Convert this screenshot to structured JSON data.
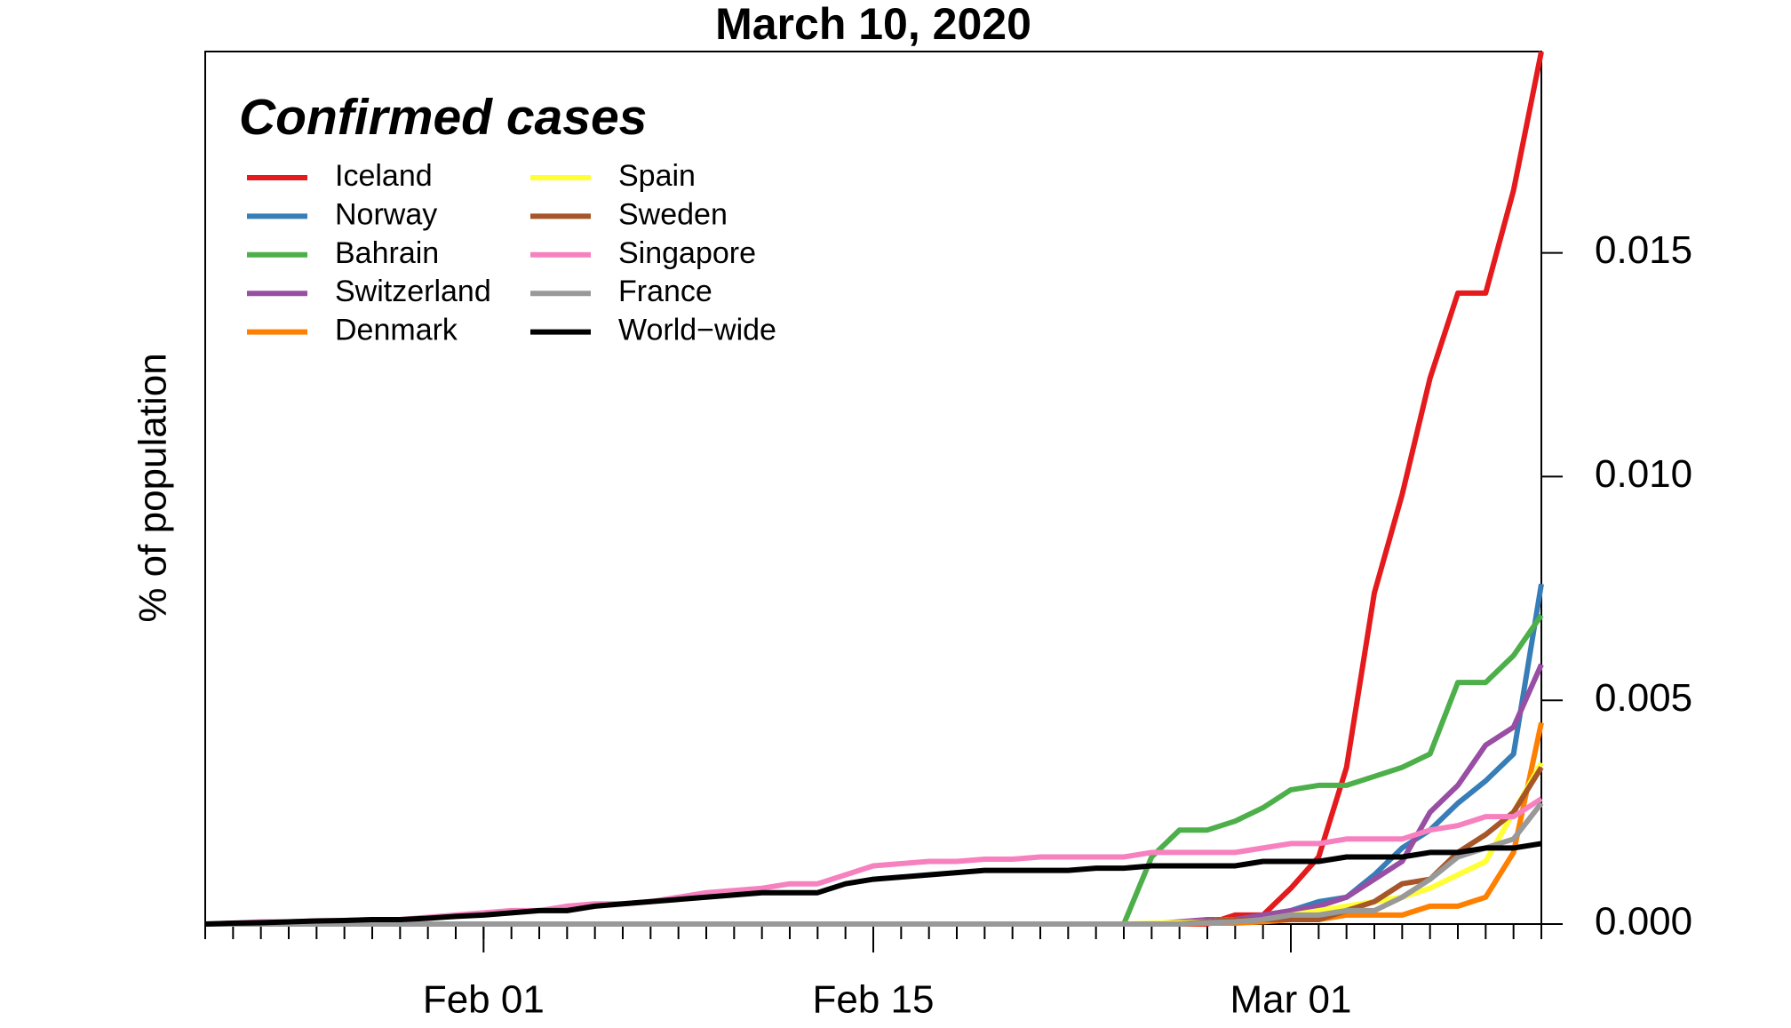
{
  "chart_data": {
    "type": "line",
    "title": "March 10, 2020",
    "y_label": "% of population",
    "y_axis_side": "right",
    "legend_title": "Confirmed cases",
    "legend_position": "top-left",
    "x": [
      "Jan 22",
      "Jan 23",
      "Jan 24",
      "Jan 25",
      "Jan 26",
      "Jan 27",
      "Jan 28",
      "Jan 29",
      "Jan 30",
      "Jan 31",
      "Feb 01",
      "Feb 02",
      "Feb 03",
      "Feb 04",
      "Feb 05",
      "Feb 06",
      "Feb 07",
      "Feb 08",
      "Feb 09",
      "Feb 10",
      "Feb 11",
      "Feb 12",
      "Feb 13",
      "Feb 14",
      "Feb 15",
      "Feb 16",
      "Feb 17",
      "Feb 18",
      "Feb 19",
      "Feb 20",
      "Feb 21",
      "Feb 22",
      "Feb 23",
      "Feb 24",
      "Feb 25",
      "Feb 26",
      "Feb 27",
      "Feb 28",
      "Feb 29",
      "Mar 01",
      "Mar 02",
      "Mar 03",
      "Mar 04",
      "Mar 05",
      "Mar 06",
      "Mar 07",
      "Mar 08",
      "Mar 09",
      "Mar 10"
    ],
    "xticks": [
      "Feb 01",
      "Feb 15",
      "Mar 01"
    ],
    "ylim": [
      0,
      0.0195
    ],
    "yticks": [
      {
        "value": 0,
        "label": "0.000"
      },
      {
        "value": 0.005,
        "label": "0.005"
      },
      {
        "value": 0.01,
        "label": "0.010"
      },
      {
        "value": 0.015,
        "label": "0.015"
      }
    ],
    "series": [
      {
        "name": "Iceland",
        "color": "#e41a1c",
        "values": [
          0,
          0,
          0,
          0,
          0,
          0,
          0,
          0,
          0,
          0,
          0,
          0,
          0,
          0,
          0,
          0,
          0,
          0,
          0,
          0,
          0,
          0,
          0,
          0,
          0,
          0,
          0,
          0,
          0,
          0,
          0,
          0,
          0,
          0,
          0,
          0,
          0,
          0.0002,
          0.0002,
          0.0008,
          0.0015,
          0.0035,
          0.0074,
          0.0096,
          0.0122,
          0.0141,
          0.0141,
          0.0164,
          0.0195
        ]
      },
      {
        "name": "Norway",
        "color": "#377eb8",
        "values": [
          0,
          0,
          0,
          0,
          0,
          0,
          0,
          0,
          0,
          0,
          0,
          0,
          0,
          0,
          0,
          0,
          0,
          0,
          0,
          0,
          0,
          0,
          0,
          0,
          0,
          0,
          0,
          0,
          0,
          0,
          0,
          0,
          0,
          0,
          0,
          2e-05,
          5e-05,
          0.0001,
          0.0002,
          0.0003,
          0.0005,
          0.0006,
          0.0011,
          0.0017,
          0.0021,
          0.0027,
          0.0032,
          0.0038,
          0.0076
        ]
      },
      {
        "name": "Bahrain",
        "color": "#4daf4a",
        "values": [
          0,
          0,
          0,
          0,
          0,
          0,
          0,
          0,
          0,
          0,
          0,
          0,
          0,
          0,
          0,
          0,
          0,
          0,
          0,
          0,
          0,
          0,
          0,
          0,
          0,
          0,
          0,
          0,
          0,
          0,
          0,
          0,
          0,
          0,
          0.0015,
          0.0021,
          0.0021,
          0.0023,
          0.0026,
          0.003,
          0.0031,
          0.0031,
          0.0033,
          0.0035,
          0.0038,
          0.0054,
          0.0054,
          0.006,
          0.0069
        ]
      },
      {
        "name": "Switzerland",
        "color": "#984ea3",
        "values": [
          0,
          0,
          0,
          0,
          0,
          0,
          0,
          0,
          0,
          0,
          0,
          0,
          0,
          0,
          0,
          0,
          0,
          0,
          0,
          0,
          0,
          0,
          0,
          0,
          0,
          0,
          0,
          0,
          0,
          0,
          0,
          0,
          0,
          0,
          0,
          5e-05,
          0.0001,
          0.0001,
          0.0002,
          0.0003,
          0.0004,
          0.0006,
          0.001,
          0.0014,
          0.0025,
          0.0031,
          0.004,
          0.0044,
          0.0058
        ]
      },
      {
        "name": "Denmark",
        "color": "#ff7f00",
        "values": [
          0,
          0,
          0,
          0,
          0,
          0,
          0,
          0,
          0,
          0,
          0,
          0,
          0,
          0,
          0,
          0,
          0,
          0,
          0,
          0,
          0,
          0,
          0,
          0,
          0,
          0,
          0,
          0,
          0,
          0,
          0,
          0,
          0,
          0,
          0,
          0,
          2e-05,
          2e-05,
          5e-05,
          0.0001,
          0.0001,
          0.0002,
          0.0002,
          0.0002,
          0.0004,
          0.0004,
          0.0006,
          0.0016,
          0.0045
        ]
      },
      {
        "name": "Spain",
        "color": "#ffff33",
        "values": [
          0,
          0,
          0,
          0,
          0,
          0,
          0,
          0,
          0,
          0,
          0,
          0,
          0,
          0,
          0,
          0,
          0,
          0,
          0,
          0,
          0,
          0,
          0,
          0,
          0,
          0,
          0,
          0,
          0,
          0,
          0,
          0,
          0,
          0,
          2e-05,
          3e-05,
          5e-05,
          0.0001,
          0.0001,
          0.0002,
          0.0003,
          0.0004,
          0.0005,
          0.0006,
          0.0008,
          0.0011,
          0.0014,
          0.0025,
          0.0036
        ]
      },
      {
        "name": "Sweden",
        "color": "#a65628",
        "values": [
          0,
          0,
          0,
          0,
          0,
          0,
          0,
          0,
          0,
          0,
          0,
          0,
          0,
          0,
          0,
          0,
          0,
          0,
          0,
          0,
          0,
          0,
          0,
          0,
          0,
          0,
          0,
          0,
          0,
          0,
          0,
          0,
          0,
          0,
          0,
          0,
          5e-05,
          0.0001,
          0.0001,
          0.0001,
          0.0001,
          0.0003,
          0.0005,
          0.0009,
          0.001,
          0.0016,
          0.002,
          0.0025,
          0.0035
        ]
      },
      {
        "name": "Singapore",
        "color": "#f781bf",
        "values": [
          0,
          2e-05,
          5e-05,
          5e-05,
          7e-05,
          8e-05,
          0.0001,
          0.0001,
          0.00015,
          0.0002,
          0.00025,
          0.0003,
          0.0003,
          0.0004,
          0.00045,
          0.00045,
          0.0005,
          0.0006,
          0.0007,
          0.00075,
          0.0008,
          0.0009,
          0.0009,
          0.0011,
          0.0013,
          0.00135,
          0.0014,
          0.0014,
          0.00145,
          0.00145,
          0.0015,
          0.0015,
          0.0015,
          0.0015,
          0.0016,
          0.0016,
          0.0016,
          0.0016,
          0.0017,
          0.0018,
          0.0018,
          0.0019,
          0.0019,
          0.0019,
          0.0021,
          0.0022,
          0.0024,
          0.0024,
          0.0028
        ]
      },
      {
        "name": "France",
        "color": "#999999",
        "values": [
          0,
          0,
          0,
          0,
          0,
          0,
          0,
          0,
          0,
          0,
          0,
          0,
          0,
          0,
          0,
          0,
          0,
          0,
          0,
          0,
          0,
          0,
          0,
          0,
          0,
          0,
          0,
          0,
          0,
          0,
          0,
          0,
          0,
          0,
          0,
          0,
          3e-05,
          5e-05,
          0.0001,
          0.0002,
          0.0002,
          0.0003,
          0.0003,
          0.0006,
          0.001,
          0.0015,
          0.0017,
          0.0019,
          0.0027
        ]
      },
      {
        "name": "World−wide",
        "color": "#000000",
        "values": [
          0,
          2e-05,
          3e-05,
          5e-05,
          7e-05,
          8e-05,
          0.0001,
          0.0001,
          0.00013,
          0.00017,
          0.0002,
          0.00025,
          0.0003,
          0.0003,
          0.0004,
          0.00045,
          0.0005,
          0.00055,
          0.0006,
          0.00065,
          0.0007,
          0.0007,
          0.0007,
          0.0009,
          0.001,
          0.00105,
          0.0011,
          0.00115,
          0.0012,
          0.0012,
          0.0012,
          0.0012,
          0.00125,
          0.00125,
          0.0013,
          0.0013,
          0.0013,
          0.0013,
          0.0014,
          0.0014,
          0.0014,
          0.0015,
          0.0015,
          0.0015,
          0.0016,
          0.0016,
          0.0017,
          0.0017,
          0.0018
        ]
      }
    ]
  }
}
